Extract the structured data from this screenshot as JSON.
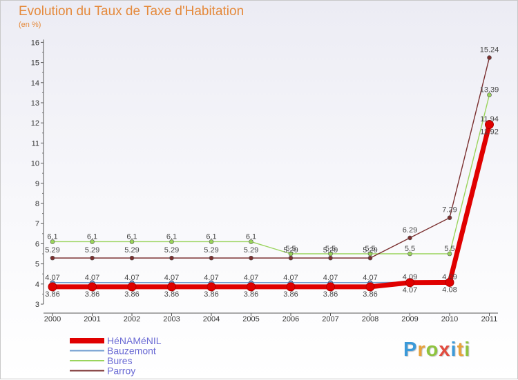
{
  "title": "Evolution du Taux de Taxe d'Habitation",
  "subtitle": "(en %)",
  "brand": {
    "letters": [
      "P",
      "r",
      "o",
      "x",
      "i",
      "t",
      "i"
    ],
    "colors": [
      "#3b9ad9",
      "#e9a23b",
      "#8fc43f",
      "#e24c3f",
      "#3b9ad9",
      "#e9a23b",
      "#8fc43f"
    ]
  },
  "chart_data": {
    "type": "line",
    "categories": [
      "2000",
      "2001",
      "2002",
      "2003",
      "2004",
      "2005",
      "2006",
      "2007",
      "2008",
      "2009",
      "2010",
      "2011"
    ],
    "ylim": [
      3,
      16
    ],
    "yticks": [
      "3",
      "4",
      "5",
      "6",
      "7",
      "8",
      "9",
      "10",
      "11",
      "12",
      "13",
      "14",
      "15",
      "16"
    ],
    "grid": false,
    "legend_position": "bottom-left",
    "series": [
      {
        "name": "HéNAMéNIL",
        "color": "#e00000",
        "values": [
          3.86,
          3.86,
          3.86,
          3.86,
          3.86,
          3.86,
          3.86,
          3.86,
          3.86,
          4.07,
          4.08,
          11.92
        ],
        "labels": [
          "3.86",
          "3.86",
          "3.86",
          "3.86",
          "3.86",
          "3.86",
          "3.86",
          "3.86",
          "3.86",
          "4.07",
          "4.08",
          "11.92"
        ]
      },
      {
        "name": "Bauzemont",
        "color": "#6e9ccf",
        "values": [
          4.07,
          4.07,
          4.07,
          4.07,
          4.07,
          4.07,
          4.07,
          4.07,
          4.07,
          4.09,
          4.09,
          11.94
        ],
        "labels": [
          "4.07",
          "4.07",
          "4.07",
          "4.07",
          "4.07",
          "4.07",
          "4.07",
          "4.07",
          "4.07",
          "4.09",
          "4.09",
          "11.94"
        ]
      },
      {
        "name": "Bures",
        "color": "#9ad45c",
        "values": [
          6.1,
          6.1,
          6.1,
          6.1,
          6.1,
          6.1,
          5.5,
          5.5,
          5.5,
          5.5,
          5.5,
          13.39
        ],
        "labels": [
          "6.1",
          "6.1",
          "6.1",
          "6.1",
          "6.1",
          "6.1",
          "5.5",
          "5.5",
          "5.5",
          "5.5",
          "5.5",
          "13.39"
        ]
      },
      {
        "name": "Parroy",
        "color": "#7a2f2f",
        "values": [
          5.29,
          5.29,
          5.29,
          5.29,
          5.29,
          5.29,
          5.29,
          5.29,
          5.29,
          6.29,
          7.29,
          15.24
        ],
        "labels": [
          "5.29",
          "5.29",
          "5.29",
          "5.29",
          "5.29",
          "5.29",
          "5.29",
          "5.29",
          "5.29",
          "6.29",
          "7.29",
          "15.24"
        ]
      }
    ]
  }
}
